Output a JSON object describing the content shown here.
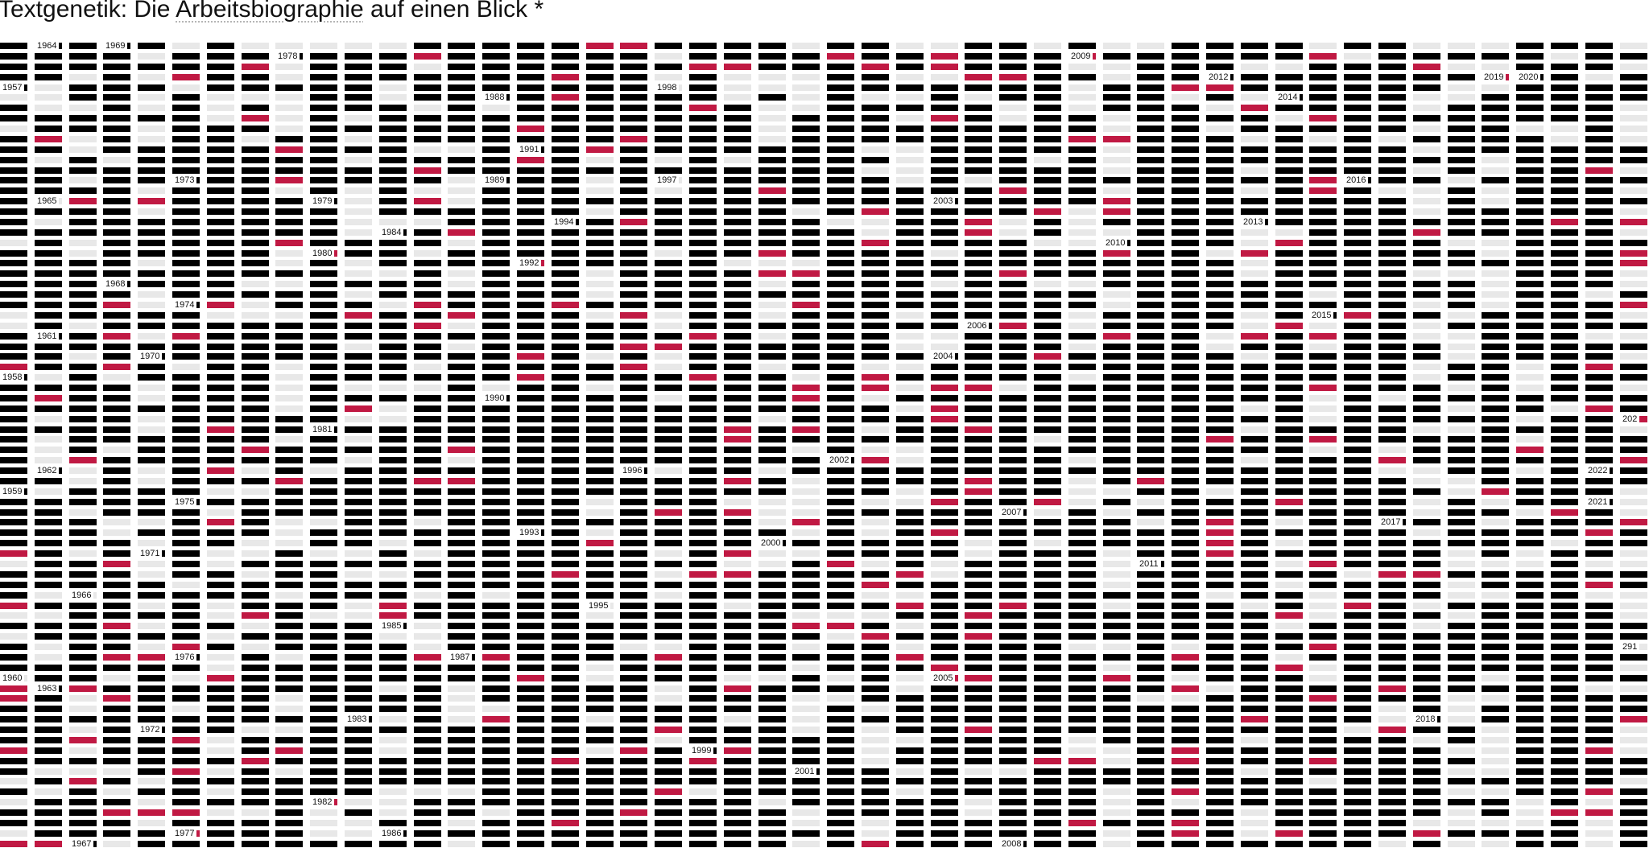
{
  "page": {
    "title_before": "Textgenetik: Die",
    "title_link": "Arbeitsbiographie",
    "title_after": "auf einen Blick",
    "title_mark": "*"
  },
  "colors": {
    "mark_dark": "#000000",
    "mark_light": "#e8e8e8",
    "mark_accent": "#c01943",
    "background": "#ffffff",
    "text": "#111111"
  },
  "year_labels": [
    {
      "col": 1,
      "row": 0,
      "text": "1964"
    },
    {
      "col": 3,
      "row": 0,
      "text": "1969"
    },
    {
      "col": 8,
      "row": 1,
      "text": "1978"
    },
    {
      "col": 31,
      "row": 1,
      "text": "2009"
    },
    {
      "col": 0,
      "row": 4,
      "text": "1957"
    },
    {
      "col": 19,
      "row": 4,
      "text": "1998"
    },
    {
      "col": 14,
      "row": 5,
      "text": "1988"
    },
    {
      "col": 35,
      "row": 3,
      "text": "2012"
    },
    {
      "col": 37,
      "row": 5,
      "text": "2014"
    },
    {
      "col": 43,
      "row": 3,
      "text": "2019"
    },
    {
      "col": 44,
      "row": 3,
      "text": "2020"
    },
    {
      "col": 15,
      "row": 10,
      "text": "1991"
    },
    {
      "col": 5,
      "row": 13,
      "text": "1973"
    },
    {
      "col": 14,
      "row": 13,
      "text": "1989"
    },
    {
      "col": 19,
      "row": 13,
      "text": "1997"
    },
    {
      "col": 39,
      "row": 13,
      "text": "2016"
    },
    {
      "col": 1,
      "row": 15,
      "text": "1965"
    },
    {
      "col": 9,
      "row": 15,
      "text": "1979"
    },
    {
      "col": 27,
      "row": 15,
      "text": "2003"
    },
    {
      "col": 16,
      "row": 17,
      "text": "1994"
    },
    {
      "col": 36,
      "row": 17,
      "text": "2013"
    },
    {
      "col": 11,
      "row": 18,
      "text": "1984"
    },
    {
      "col": 32,
      "row": 19,
      "text": "2010"
    },
    {
      "col": 9,
      "row": 20,
      "text": "1980"
    },
    {
      "col": 15,
      "row": 21,
      "text": "1992"
    },
    {
      "col": 3,
      "row": 23,
      "text": "1968"
    },
    {
      "col": 5,
      "row": 25,
      "text": "1974"
    },
    {
      "col": 38,
      "row": 26,
      "text": "2015"
    },
    {
      "col": 28,
      "row": 27,
      "text": "2006"
    },
    {
      "col": 1,
      "row": 28,
      "text": "1961"
    },
    {
      "col": 4,
      "row": 30,
      "text": "1970"
    },
    {
      "col": 27,
      "row": 30,
      "text": "2004"
    },
    {
      "col": 0,
      "row": 32,
      "text": "1958"
    },
    {
      "col": 14,
      "row": 34,
      "text": "1990"
    },
    {
      "col": 47,
      "row": 36,
      "text": "202"
    },
    {
      "col": 9,
      "row": 37,
      "text": "1981"
    },
    {
      "col": 24,
      "row": 40,
      "text": "2002"
    },
    {
      "col": 1,
      "row": 41,
      "text": "1962"
    },
    {
      "col": 18,
      "row": 41,
      "text": "1996"
    },
    {
      "col": 46,
      "row": 41,
      "text": "2022"
    },
    {
      "col": 0,
      "row": 43,
      "text": "1959"
    },
    {
      "col": 5,
      "row": 44,
      "text": "1975"
    },
    {
      "col": 46,
      "row": 44,
      "text": "2021"
    },
    {
      "col": 29,
      "row": 45,
      "text": "2007"
    },
    {
      "col": 40,
      "row": 46,
      "text": "2017"
    },
    {
      "col": 15,
      "row": 47,
      "text": "1993"
    },
    {
      "col": 22,
      "row": 48,
      "text": "2000"
    },
    {
      "col": 4,
      "row": 49,
      "text": "1971"
    },
    {
      "col": 33,
      "row": 50,
      "text": "2011"
    },
    {
      "col": 2,
      "row": 53,
      "text": "1966"
    },
    {
      "col": 17,
      "row": 54,
      "text": "1995"
    },
    {
      "col": 11,
      "row": 56,
      "text": "1985"
    },
    {
      "col": 47,
      "row": 58,
      "text": "291"
    },
    {
      "col": 5,
      "row": 59,
      "text": "1976"
    },
    {
      "col": 13,
      "row": 59,
      "text": "1987"
    },
    {
      "col": 0,
      "row": 61,
      "text": "1960"
    },
    {
      "col": 27,
      "row": 61,
      "text": "2005"
    },
    {
      "col": 1,
      "row": 62,
      "text": "1963"
    },
    {
      "col": 10,
      "row": 65,
      "text": "1983"
    },
    {
      "col": 41,
      "row": 65,
      "text": "2018"
    },
    {
      "col": 4,
      "row": 66,
      "text": "1972"
    },
    {
      "col": 20,
      "row": 68,
      "text": "1999"
    },
    {
      "col": 23,
      "row": 70,
      "text": "2001"
    },
    {
      "col": 9,
      "row": 73,
      "text": "1982"
    },
    {
      "col": 5,
      "row": 76,
      "text": "1977"
    },
    {
      "col": 11,
      "row": 76,
      "text": "1986"
    },
    {
      "col": 2,
      "row": 77,
      "text": "1967"
    },
    {
      "col": 29,
      "row": 77,
      "text": "2008"
    }
  ]
}
